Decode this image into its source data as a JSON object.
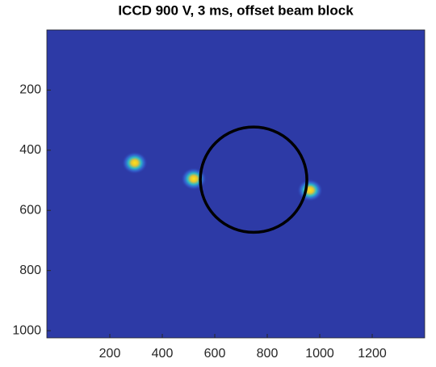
{
  "chart_data": {
    "type": "image",
    "title": "ICCD 900 V, 3 ms, offset beam block",
    "xlim": [
      -40,
      1400
    ],
    "ylim": [
      0,
      1024
    ],
    "y_reversed": true,
    "xticks": [
      200,
      400,
      600,
      800,
      1000,
      1200
    ],
    "yticks": [
      200,
      400,
      600,
      800,
      1000
    ],
    "background": "#2d3aa6",
    "spots": [
      {
        "x": 295,
        "y": 442
      },
      {
        "x": 520,
        "y": 495
      },
      {
        "x": 963,
        "y": 533
      }
    ],
    "circle": {
      "cx": 748,
      "cy": 498,
      "rx": 203,
      "ry": 175,
      "color": "#000000"
    }
  }
}
